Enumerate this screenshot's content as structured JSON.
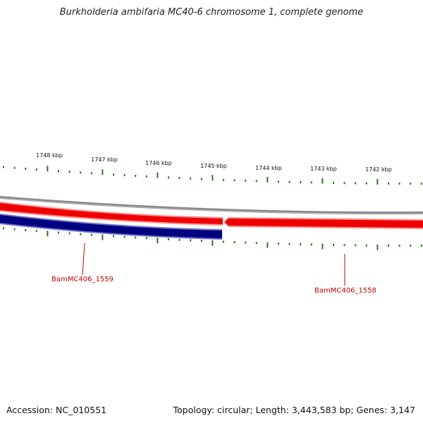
{
  "title": "Burkholderia ambifaria MC40-6 chromosome 1, complete genome",
  "accession": "Accession: NC_010551",
  "summary": "Topology: circular; Length: 3,443,583 bp; Genes: 3,147",
  "scale_labels": [
    "1748 kbp",
    "1747 kbp",
    "1746 kbp",
    "1745 kbp",
    "1744 kbp",
    "1743 kbp",
    "1742 kbp"
  ],
  "genes": [
    {
      "label": "BamMC406_1559",
      "strand": "minus"
    },
    {
      "label": "BamMC406_1558",
      "strand": "plus"
    }
  ],
  "colors": {
    "plus_strand": "#ee0000",
    "minus_strand": "#000080",
    "backbone": "#888888",
    "ticks": "#2a7a1a",
    "gene_label": "#cc0000"
  }
}
